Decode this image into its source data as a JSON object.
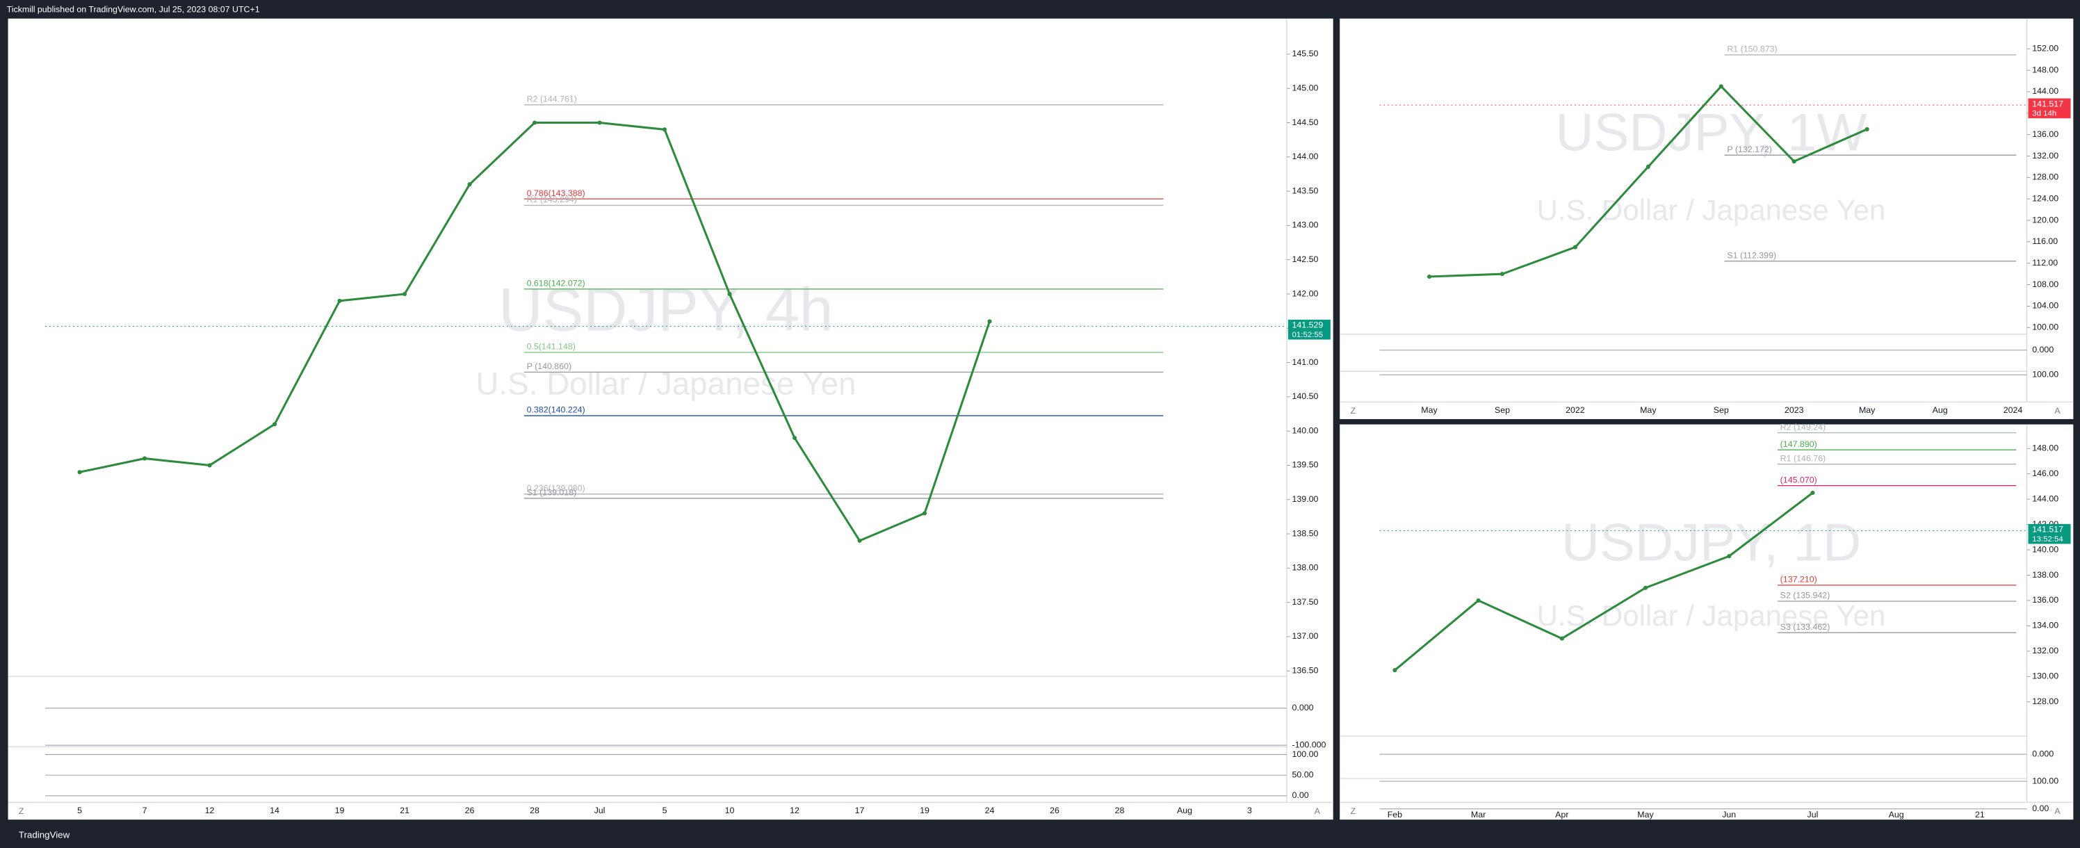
{
  "header": {
    "text": "Tickmill published on TradingView.com, Jul 25, 2023 08:07 UTC+1"
  },
  "footer": {
    "text": "TradingView"
  },
  "chart_data": [
    {
      "type": "line",
      "title": "USDJPY, 4h",
      "subtitle": "U.S. Dollar / Japanese Yen",
      "categories": [
        "5",
        "7",
        "12",
        "14",
        "19",
        "21",
        "26",
        "28",
        "Jul",
        "5",
        "10",
        "12",
        "17",
        "19",
        "24",
        "26",
        "28",
        "Aug",
        "3"
      ],
      "values": [
        139.4,
        139.6,
        139.5,
        140.1,
        141.9,
        142.0,
        143.6,
        144.5,
        144.5,
        144.4,
        142.0,
        139.9,
        138.4,
        138.8,
        141.6,
        null,
        null,
        null,
        null
      ],
      "color": "#2e8b3e",
      "ylim": [
        136.42,
        146.0
      ],
      "yticks": [
        {
          "value": 136.5,
          "label": "136.50"
        },
        {
          "value": 137,
          "label": "137.00"
        },
        {
          "value": 137.5,
          "label": "137.50"
        },
        {
          "value": 138,
          "label": "138.00"
        },
        {
          "value": 138.5,
          "label": "138.50"
        },
        {
          "value": 139,
          "label": "139.00"
        },
        {
          "value": 139.5,
          "label": "139.50"
        },
        {
          "value": 140,
          "label": "140.00"
        },
        {
          "value": 140.5,
          "label": "140.50"
        },
        {
          "value": 141,
          "label": "141.00"
        },
        {
          "value": 141.5,
          "label": "141.50"
        },
        {
          "value": 142,
          "label": "142.00"
        },
        {
          "value": 142.5,
          "label": "142.50"
        },
        {
          "value": 143,
          "label": "143.00"
        },
        {
          "value": 143.5,
          "label": "143.50"
        },
        {
          "value": 144,
          "label": "144.00"
        },
        {
          "value": 144.5,
          "label": "144.50"
        },
        {
          "value": 145,
          "label": "145.00"
        },
        {
          "value": 145.5,
          "label": "145.50"
        }
      ],
      "levels": [
        {
          "label": "R2 (144.761)",
          "value": 144.761,
          "color": "#b0b3bb"
        },
        {
          "label": "0.786(143.388)",
          "value": 143.388,
          "color": "#e53935"
        },
        {
          "label": "R1 (143.294)",
          "value": 143.294,
          "color": "#b0b3bb"
        },
        {
          "label": "0.618(142.072)",
          "value": 142.072,
          "color": "#4caf50"
        },
        {
          "label": "0.5(141.148)",
          "value": 141.148,
          "color": "#81c784"
        },
        {
          "label": "P (140.860)",
          "value": 140.86,
          "color": "#9598a1"
        },
        {
          "label": "0.382(140.224)",
          "value": 140.224,
          "color": "#1e4ea8"
        },
        {
          "label": "0.236(139.080)",
          "value": 139.08,
          "color": "#b0b3bb"
        },
        {
          "label": "S1 (139.018)",
          "value": 139.018,
          "color": "#9598a1"
        }
      ],
      "last_price": 141.529,
      "last_price_color": "#089981",
      "countdown": "01:52:55",
      "panes": [
        {
          "ylim": [
            -104,
            86
          ],
          "yticks": [
            {
              "value": 0,
              "label": "0.000"
            },
            {
              "value": -100,
              "label": "-100.000"
            }
          ]
        },
        {
          "ylim": [
            -16,
            119
          ],
          "yticks": [
            {
              "value": 100,
              "label": "100.00"
            },
            {
              "value": 50,
              "label": "50.00"
            },
            {
              "value": 0,
              "label": "0.00"
            }
          ]
        }
      ],
      "scale_buttons": [
        "Z",
        "A"
      ]
    },
    {
      "type": "line",
      "title": "USDJPY, 1W",
      "subtitle": "U.S. Dollar / Japanese Yen",
      "categories": [
        "May",
        "Sep",
        "2022",
        "May",
        "Sep",
        "2023",
        "May",
        "Aug",
        "2024"
      ],
      "values": [
        109.5,
        110,
        115,
        130,
        145,
        131,
        137,
        null,
        null
      ],
      "color": "#2e8b3e",
      "ylim": [
        99.75,
        157.4
      ],
      "yticks": [
        {
          "value": 100,
          "label": "100.00"
        },
        {
          "value": 104,
          "label": "104.00"
        },
        {
          "value": 108,
          "label": "108.00"
        },
        {
          "value": 112,
          "label": "112.00"
        },
        {
          "value": 116,
          "label": "116.00"
        },
        {
          "value": 120,
          "label": "120.00"
        },
        {
          "value": 124,
          "label": "124.00"
        },
        {
          "value": 128,
          "label": "128.00"
        },
        {
          "value": 132,
          "label": "132.00"
        },
        {
          "value": 136,
          "label": "136.00"
        },
        {
          "value": 140,
          "label": "140.00"
        },
        {
          "value": 144,
          "label": "144.00"
        },
        {
          "value": 148,
          "label": "148.00"
        },
        {
          "value": 152,
          "label": "152.00"
        }
      ],
      "levels": [
        {
          "label": "R1 (150.873)",
          "value": 150.873,
          "color": "#b0b3bb"
        },
        {
          "label": "P (132.172)",
          "value": 132.172,
          "color": "#9598a1"
        },
        {
          "label": "S1 (112.399)",
          "value": 112.399,
          "color": "#9598a1"
        }
      ],
      "last_price": 141.517,
      "last_price_color": "#f23645",
      "countdown": "3d 14h",
      "panes": [
        {
          "ylim": [
            -80,
            60
          ],
          "yticks": [
            {
              "value": 0,
              "label": "0.000"
            }
          ]
        },
        {
          "ylim": [
            -10,
            115
          ],
          "yticks": [
            {
              "value": 100,
              "label": "100.00"
            }
          ]
        }
      ],
      "scale_buttons": [
        "Z",
        "A"
      ]
    },
    {
      "type": "line",
      "title": "USDJPY, 1D",
      "subtitle": "U.S. Dollar / Japanese Yen",
      "categories": [
        "Feb",
        "Mar",
        "Apr",
        "May",
        "Jun",
        "Jul",
        "Aug",
        "21"
      ],
      "values": [
        130.5,
        136,
        133,
        137,
        139.5,
        144.5,
        null,
        null
      ],
      "color": "#2e8b3e",
      "ylim": [
        125.3,
        149.9
      ],
      "yticks": [
        {
          "value": 128,
          "label": "128.00"
        },
        {
          "value": 130,
          "label": "130.00"
        },
        {
          "value": 132,
          "label": "132.00"
        },
        {
          "value": 134,
          "label": "134.00"
        },
        {
          "value": 136,
          "label": "136.00"
        },
        {
          "value": 138,
          "label": "138.00"
        },
        {
          "value": 140,
          "label": "140.00"
        },
        {
          "value": 142,
          "label": "142.00"
        },
        {
          "value": 144,
          "label": "144.00"
        },
        {
          "value": 146,
          "label": "146.00"
        },
        {
          "value": 148,
          "label": "148.00"
        }
      ],
      "levels": [
        {
          "label": "R2 (149.24)",
          "value": 149.24,
          "color": "#b0b3bb"
        },
        {
          "label": "(147.890)",
          "value": 147.89,
          "color": "#4caf50"
        },
        {
          "label": "R1 (146.76)",
          "value": 146.76,
          "color": "#b0b3bb"
        },
        {
          "label": "(145.070)",
          "value": 145.07,
          "color": "#e91e63"
        },
        {
          "label": "(137.210)",
          "value": 137.21,
          "color": "#e53935"
        },
        {
          "label": "S2 (135.942)",
          "value": 135.942,
          "color": "#9598a1"
        },
        {
          "label": "S3 (133.462)",
          "value": 133.462,
          "color": "#9598a1"
        }
      ],
      "last_price": 141.517,
      "last_price_color": "#089981",
      "countdown": "13:52:54",
      "panes": [
        {
          "ylim": [
            -80,
            60
          ],
          "yticks": [
            {
              "value": 0,
              "label": "0.000"
            }
          ]
        },
        {
          "ylim": [
            -10,
            110
          ],
          "yticks": [
            {
              "value": 100,
              "label": "100.00"
            },
            {
              "value": 0,
              "label": "0.00"
            }
          ]
        }
      ],
      "scale_buttons": [
        "Z",
        "A"
      ]
    }
  ]
}
